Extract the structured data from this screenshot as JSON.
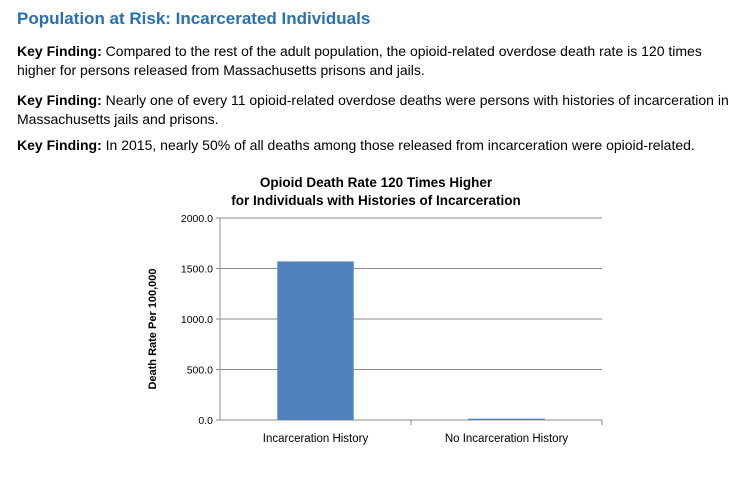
{
  "page": {
    "section_title": "Population at Risk: Incarcerated Individuals",
    "findings": [
      {
        "label": "Key Finding:",
        "text": "Compared to the rest of the adult population, the opioid-related overdose death rate is 120 times higher for persons released from Massachusetts prisons and jails."
      },
      {
        "label": "Key Finding:",
        "text": "Nearly one of every 11 opioid-related overdose deaths were persons with histories of incarceration in Massachusetts jails and prisons."
      },
      {
        "label": "Key Finding:",
        "text": "In 2015, nearly 50% of all deaths among those released from incarceration were opioid-related."
      }
    ]
  },
  "colors": {
    "title_accent": "#2a6fb5",
    "bar_fill": "#4f81bd",
    "gridline": "#8c8c8c",
    "axis": "#8c8c8c"
  },
  "chart_data": {
    "type": "bar",
    "title_lines": [
      "Opioid Death Rate 120 Times Higher",
      "for Individuals with Histories of Incarceration"
    ],
    "categories": [
      "Incarceration History",
      "No Incarceration History"
    ],
    "values": [
      1570.0,
      13.0
    ],
    "xlabel": "",
    "ylabel": "Death Rate Per 100,000",
    "ylim": [
      0,
      2000
    ],
    "yticks": [
      0,
      500,
      1000,
      1500,
      2000
    ],
    "ytick_labels": [
      "0.0",
      "500.0",
      "1000.0",
      "1500.0",
      "2000.0"
    ],
    "grid": true,
    "legend": "none"
  }
}
